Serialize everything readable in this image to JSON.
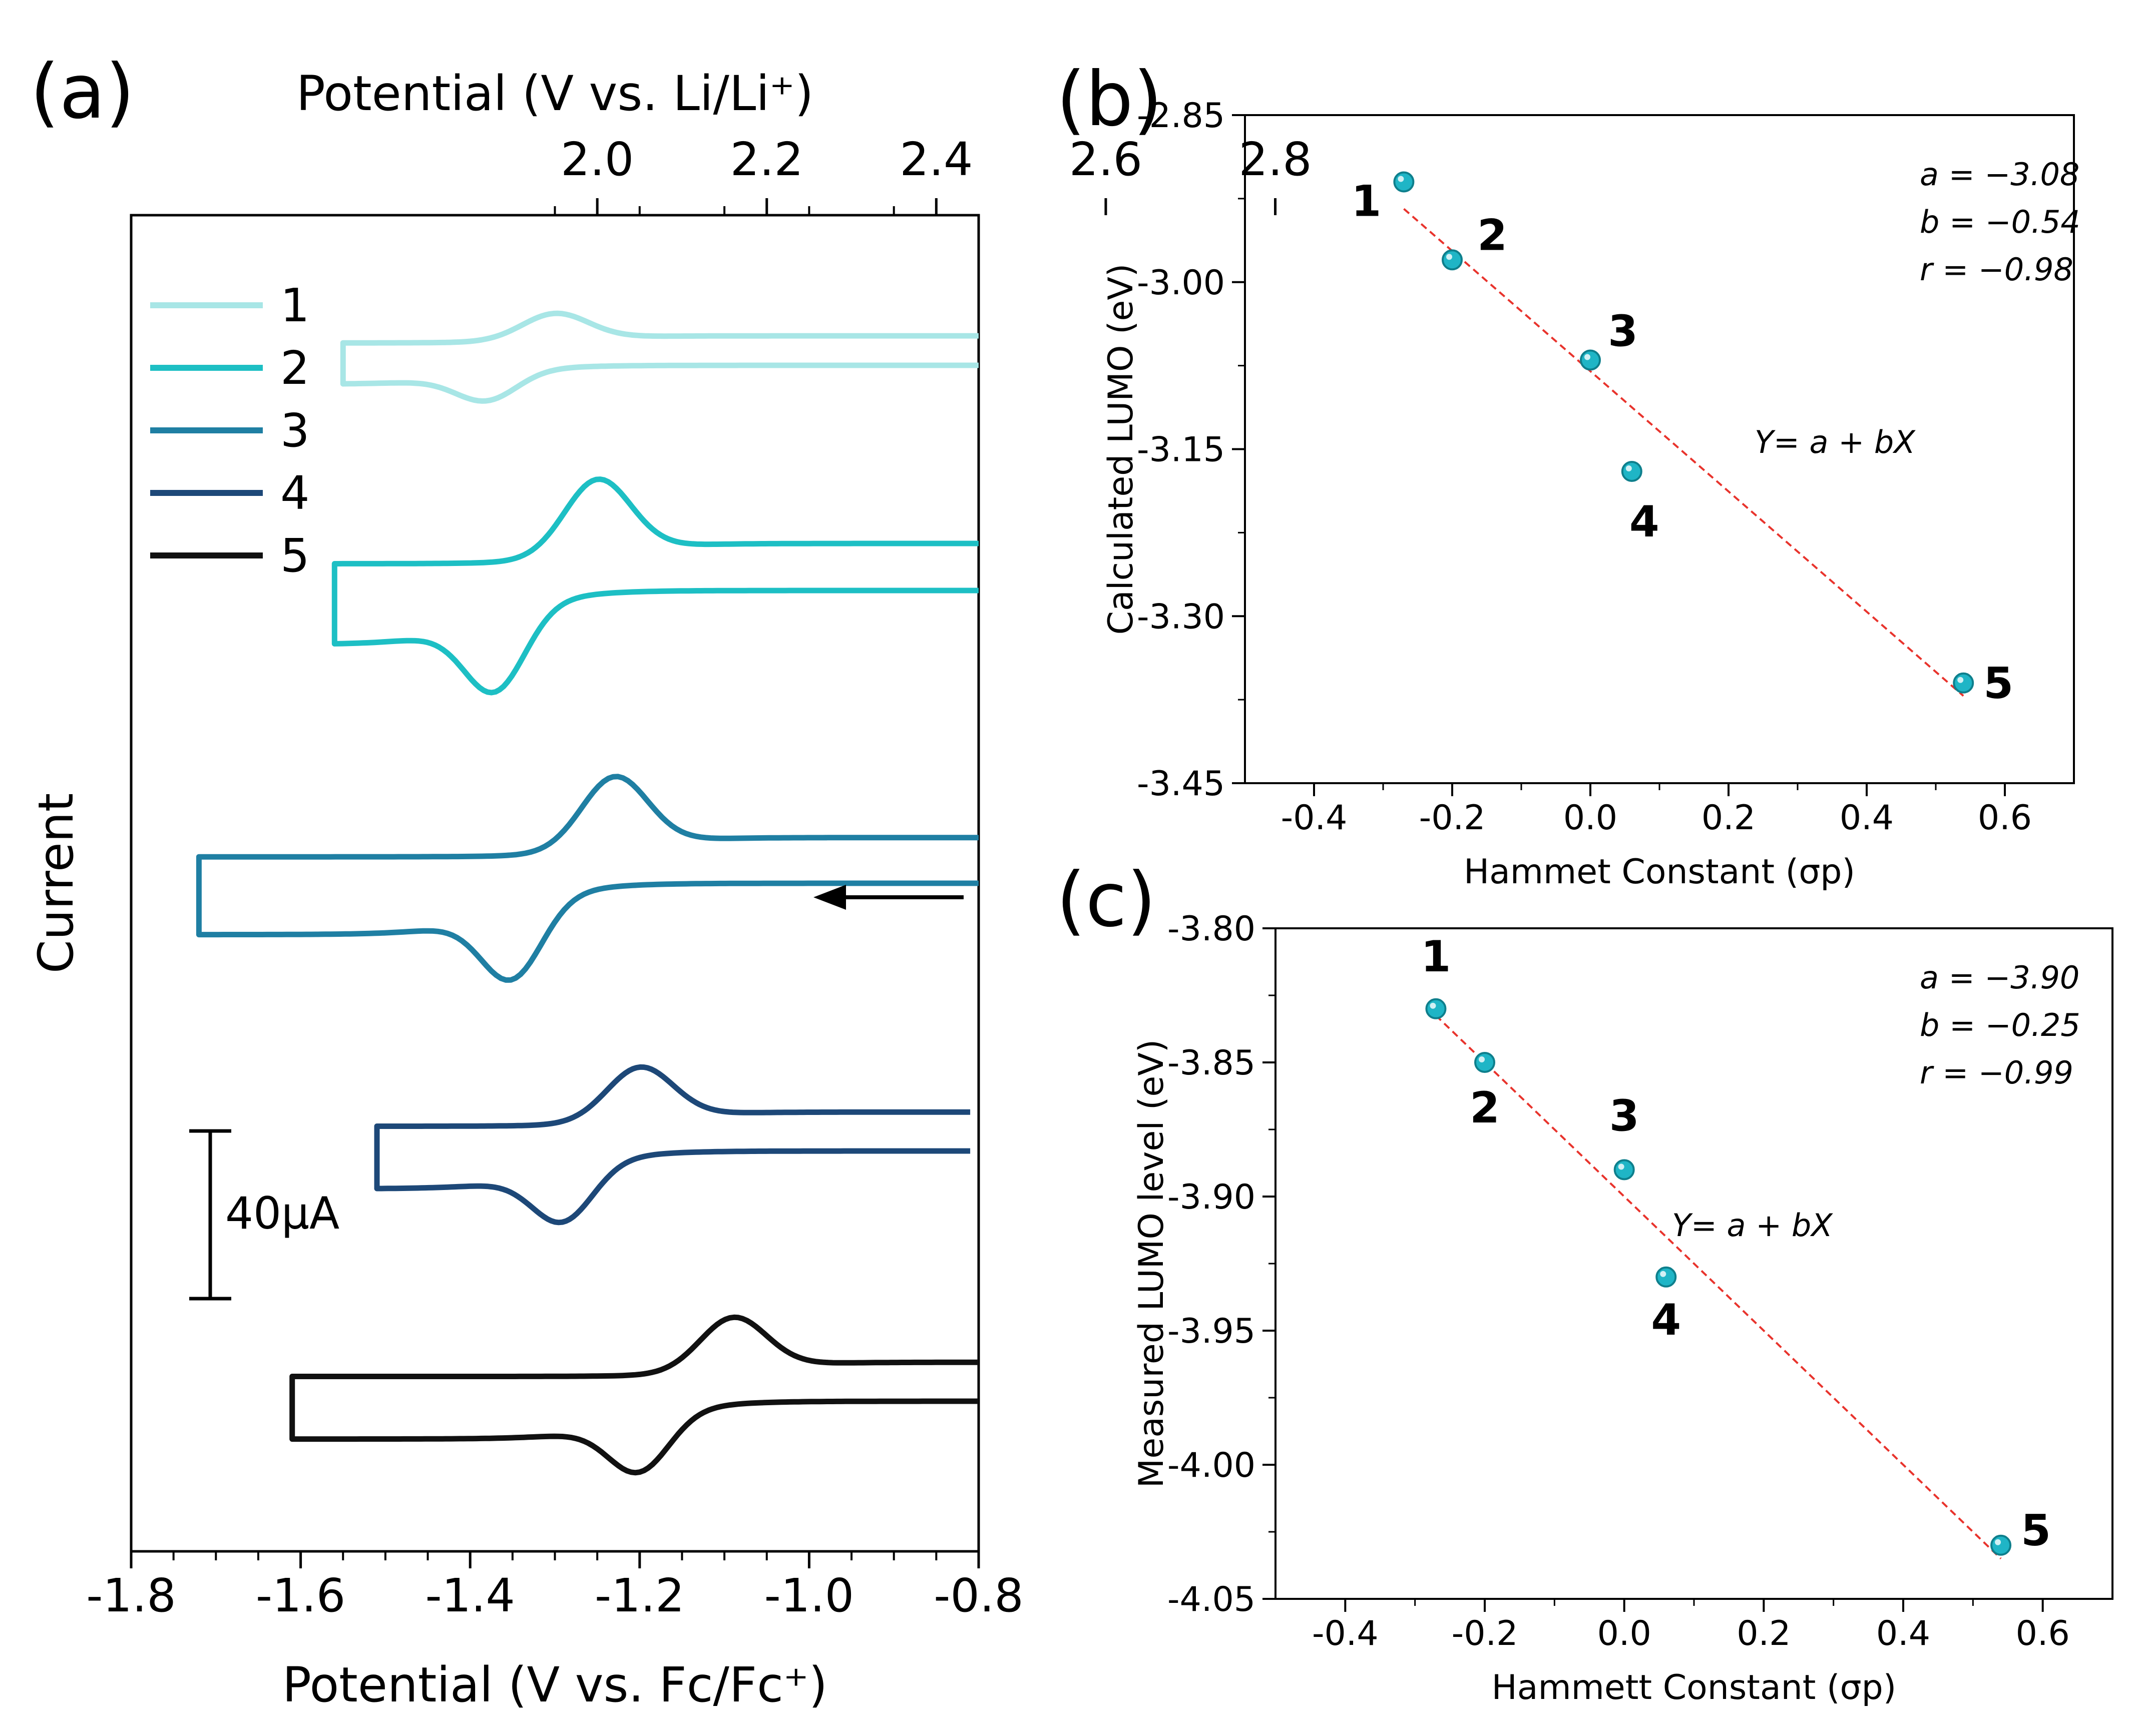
{
  "chart_data": [
    {
      "panel": "a",
      "panel_label": "(a)",
      "type": "line",
      "title": "",
      "xlabel": "Potential (V vs. Fc/Fc⁺)",
      "x2label": "Potential (V vs. Li/Li⁺)",
      "ylabel": "Current",
      "xlim": [
        -1.8,
        -0.8
      ],
      "xticks": [
        "-1.8",
        "-1.6",
        "-1.4",
        "-1.2",
        "-1.0",
        "-0.8"
      ],
      "x2ticks": [
        "2.0",
        "2.2",
        "2.4",
        "2.6",
        "2.8"
      ],
      "scale_bar": "40μA",
      "scan_direction": "arrow pointing to negative potential",
      "series": [
        {
          "name": "1",
          "color": "#a8e6e6",
          "x_start": -1.55,
          "x_end": -0.8,
          "E_pc": -1.38,
          "E_pa": -1.3,
          "relative_amplitude": 0.35,
          "offset": 0
        },
        {
          "name": "2",
          "color": "#1dbfc4",
          "x_start": -1.56,
          "x_end": -0.8,
          "E_pc": -1.37,
          "E_pa": -1.25,
          "relative_amplitude": 1.0,
          "offset": 1
        },
        {
          "name": "3",
          "color": "#1f7fa3",
          "x_start": -1.72,
          "x_end": -0.8,
          "E_pc": -1.35,
          "E_pa": -1.23,
          "relative_amplitude": 0.95,
          "offset": 2
        },
        {
          "name": "4",
          "color": "#1d4878",
          "x_start": -1.51,
          "x_end": -0.81,
          "E_pc": -1.29,
          "E_pa": -1.2,
          "relative_amplitude": 0.7,
          "offset": 3
        },
        {
          "name": "5",
          "color": "#111111",
          "x_start": -1.61,
          "x_end": -0.8,
          "E_pc": -1.2,
          "E_pa": -1.09,
          "relative_amplitude": 0.7,
          "offset": 4
        }
      ]
    },
    {
      "panel": "b",
      "panel_label": "(b)",
      "type": "scatter",
      "xlabel": "Hammet Constant (σp)",
      "ylabel": "Calculated LUMO (eV)",
      "xlim": [
        -0.5,
        0.7
      ],
      "ylim": [
        -3.45,
        -2.85
      ],
      "xticks": [
        "-0.4",
        "-0.2",
        "0.0",
        "0.2",
        "0.4",
        "0.6"
      ],
      "yticks": [
        "-2.85",
        "-3.00",
        "-3.15",
        "-3.30",
        "-3.45"
      ],
      "points": [
        {
          "label": "1",
          "x": -0.27,
          "y": -2.91
        },
        {
          "label": "2",
          "x": -0.2,
          "y": -2.98
        },
        {
          "label": "3",
          "x": 0.0,
          "y": -3.07
        },
        {
          "label": "4",
          "x": 0.06,
          "y": -3.17
        },
        {
          "label": "5",
          "x": 0.54,
          "y": -3.36
        }
      ],
      "fit": {
        "a": -3.08,
        "b": -0.54,
        "x_range": [
          -0.27,
          0.54
        ]
      },
      "fit_equation": "Y= a + bX",
      "fit_text": [
        "a = −3.08",
        "b = −0.54",
        "r = −0.98"
      ]
    },
    {
      "panel": "c",
      "panel_label": "(c)",
      "type": "scatter",
      "xlabel": "Hammett Constant (σp)",
      "ylabel": "Measured LUMO level (eV)",
      "xlim": [
        -0.5,
        0.7
      ],
      "ylim": [
        -4.05,
        -3.8
      ],
      "xticks": [
        "-0.4",
        "-0.2",
        "0.0",
        "0.2",
        "0.4",
        "0.6"
      ],
      "yticks": [
        "-3.80",
        "-3.85",
        "-3.90",
        "-3.95",
        "-4.00",
        "-4.05"
      ],
      "points": [
        {
          "label": "1",
          "x": -0.27,
          "y": -3.83
        },
        {
          "label": "2",
          "x": -0.2,
          "y": -3.85
        },
        {
          "label": "3",
          "x": 0.0,
          "y": -3.89
        },
        {
          "label": "4",
          "x": 0.06,
          "y": -3.93
        },
        {
          "label": "5",
          "x": 0.54,
          "y": -4.03
        }
      ],
      "fit": {
        "a": -3.9,
        "b": -0.25,
        "x_range": [
          -0.27,
          0.54
        ]
      },
      "fit_equation": "Y= a + bX",
      "fit_text": [
        "a = −3.90",
        "b = −0.25",
        "r = −0.99"
      ]
    }
  ],
  "colors": {
    "marker": "#1fb5c6",
    "marker_edge": "#0e7f8c",
    "fit_line": "#e8332c"
  }
}
